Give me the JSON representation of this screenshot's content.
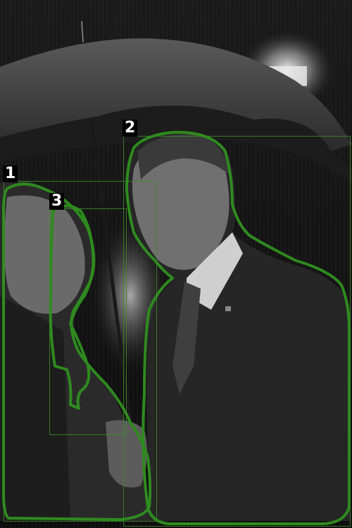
{
  "image": {
    "description_free": true,
    "tone": "grayscale",
    "annotation_color": "#2f8a1f"
  },
  "annotations": [
    {
      "label": "1"
    },
    {
      "label": "2"
    },
    {
      "label": "3"
    }
  ]
}
